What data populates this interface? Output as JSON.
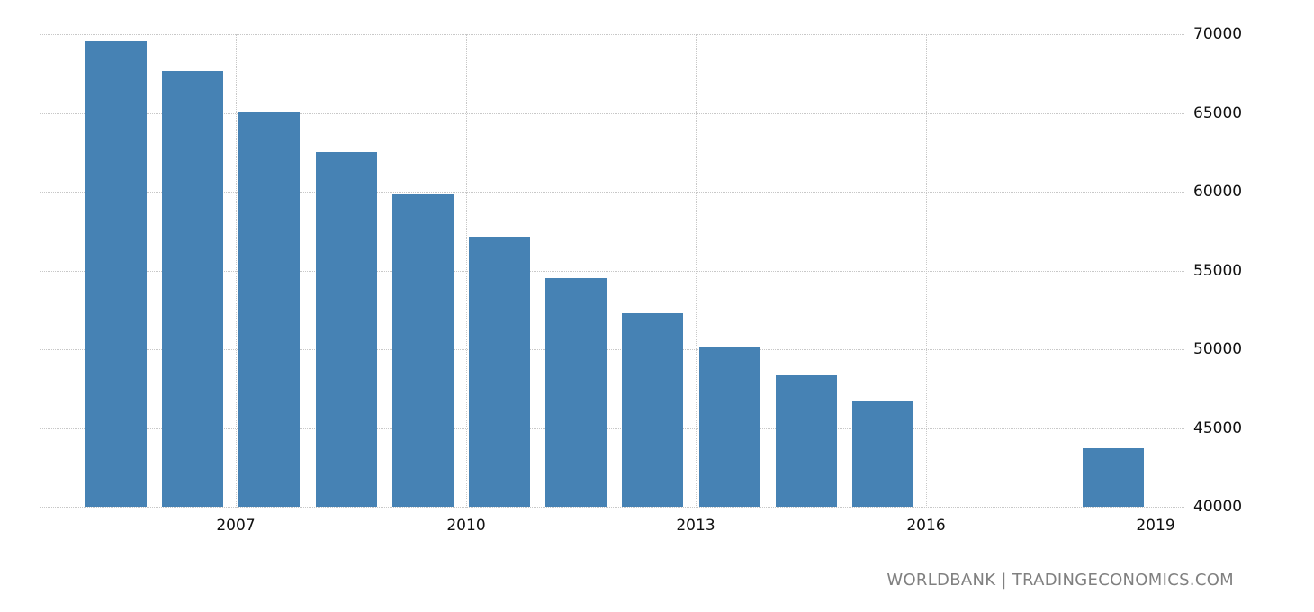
{
  "chart_data": {
    "type": "bar",
    "title": "",
    "xlabel": "",
    "ylabel": "",
    "categories": [
      "2005",
      "2006",
      "2007",
      "2008",
      "2009",
      "2010",
      "2011",
      "2012",
      "2013",
      "2014",
      "2015",
      "2016",
      "2017",
      "2018"
    ],
    "values": [
      69540,
      67660,
      65100,
      62530,
      59850,
      57130,
      54500,
      52270,
      50190,
      48360,
      46730,
      null,
      null,
      43700
    ],
    "ylim": [
      40000,
      70000
    ],
    "y_ticks": [
      40000,
      45000,
      50000,
      55000,
      60000,
      65000,
      70000
    ],
    "x_ticks": [
      "2007",
      "2010",
      "2013",
      "2016",
      "2019"
    ],
    "y_axis_position": "right",
    "grid": true,
    "bar_color": "#4682b4",
    "source": "WORLDBANK | TRADINGECONOMICS.COM"
  },
  "labels": {
    "y_ticks": [
      "70000",
      "65000",
      "60000",
      "55000",
      "50000",
      "45000",
      "40000"
    ],
    "x_ticks": [
      "2007",
      "2010",
      "2013",
      "2016",
      "2019"
    ],
    "source": "WORLDBANK | TRADINGECONOMICS.COM"
  }
}
